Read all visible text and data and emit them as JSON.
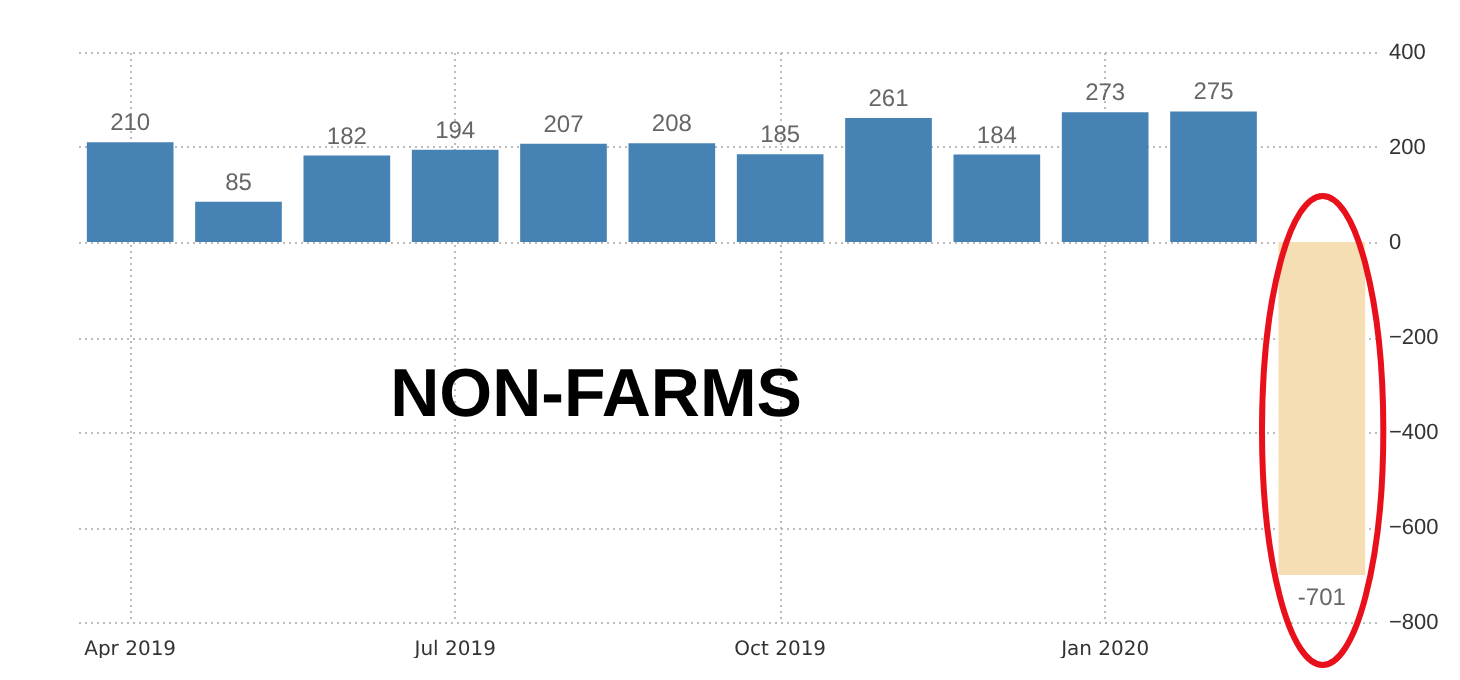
{
  "chart_data": {
    "type": "bar",
    "categories": [
      "Apr 2019",
      null,
      null,
      "Jul 2019",
      null,
      null,
      "Oct 2019",
      null,
      null,
      "Jan 2020",
      null,
      null
    ],
    "values": [
      210,
      85,
      182,
      194,
      207,
      208,
      185,
      261,
      184,
      273,
      275,
      -701
    ],
    "colors": [
      "#4682b4",
      "#4682b4",
      "#4682b4",
      "#4682b4",
      "#4682b4",
      "#4682b4",
      "#4682b4",
      "#4682b4",
      "#4682b4",
      "#4682b4",
      "#4682b4",
      "#f5deb3"
    ],
    "ylim": [
      -800,
      400
    ],
    "yticks": [
      -800,
      -600,
      -400,
      -200,
      0,
      200,
      400
    ],
    "grid": true,
    "data_labels": true,
    "annotations": [
      "NON-FARMS"
    ]
  }
}
